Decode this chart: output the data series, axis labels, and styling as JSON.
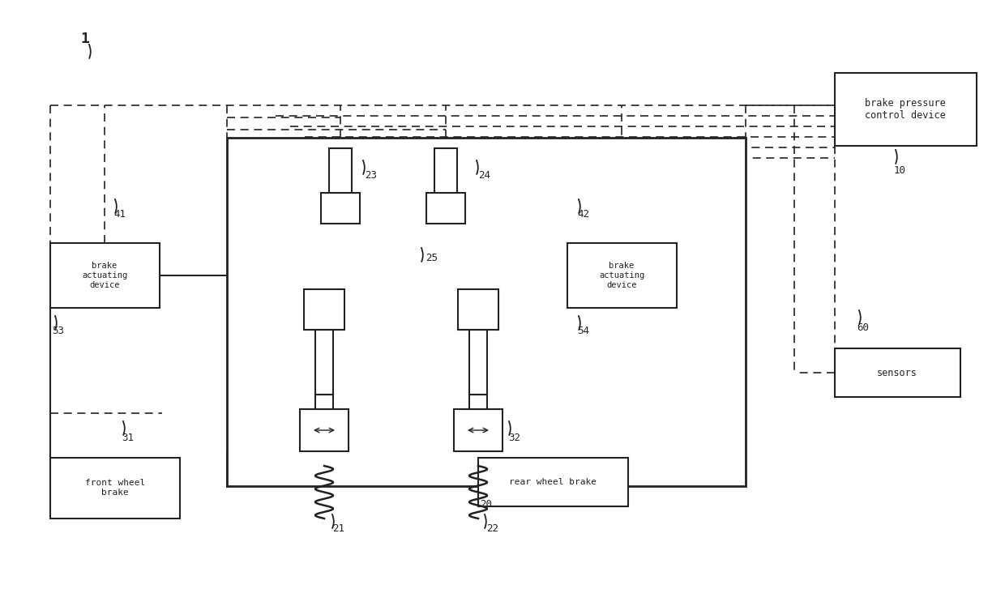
{
  "bg_color": "#ffffff",
  "lc": "#222222",
  "fig_w": 12.4,
  "fig_h": 7.27,
  "dpi": 100,
  "labels": {
    "n1": "1",
    "brake_pressure": "brake pressure\ncontrol device",
    "brake_act": "brake\nactuating\ndevice",
    "front_wheel_brake": "front wheel\nbrake",
    "rear_wheel_brake": "rear wheel brake",
    "sensors": "sensors",
    "n10": "10",
    "n20": "20",
    "n21": "21",
    "n22": "22",
    "n23": "23",
    "n24": "24",
    "n25": "25",
    "n31": "31",
    "n32": "32",
    "n41": "41",
    "n42": "42",
    "n53": "53",
    "n54": "54",
    "n60": "60"
  }
}
